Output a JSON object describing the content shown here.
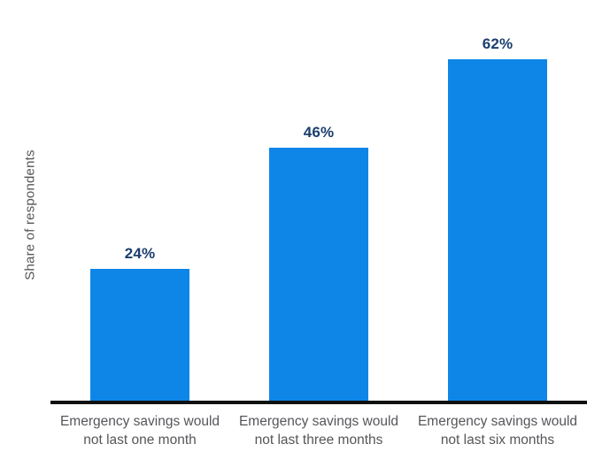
{
  "chart_data": {
    "type": "bar",
    "categories": [
      "Emergency savings would not last one month",
      "Emergency savings would not last three months",
      "Emergency savings would not last six months"
    ],
    "category_lines": [
      [
        "Emergency savings would",
        "not last one month"
      ],
      [
        "Emergency savings would",
        "not last three months"
      ],
      [
        "Emergency savings would",
        "not last six months"
      ]
    ],
    "values": [
      24,
      46,
      62
    ],
    "value_labels": [
      "24%",
      "46%",
      "62%"
    ],
    "title": "",
    "xlabel": "",
    "ylabel": "Share of respondents",
    "ylim": [
      0,
      72
    ],
    "grid": false,
    "legend": false,
    "colors": {
      "bar": "#0e86e7",
      "value_label": "#1b3e6e",
      "axis_line": "#0f1010",
      "category_label": "#55565a",
      "y_axis_label": "#55565a",
      "background": "#ffffff"
    }
  }
}
